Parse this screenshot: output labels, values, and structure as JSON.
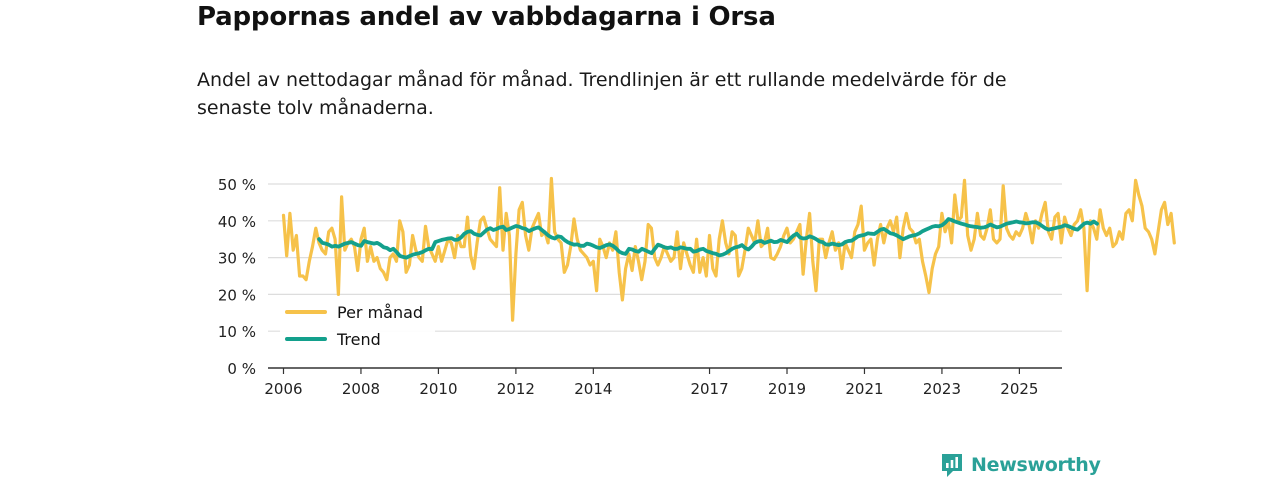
{
  "title": "Pappornas andel av vabbdagarna i Orsa",
  "subtitle": "Andel av nettodagar månad för månad. Trendlinjen är ett rullande medelvärde för de senaste tolv månaderna.",
  "brand": {
    "name": "Newsworthy",
    "icon": "newsworthy-logo-icon"
  },
  "colors": {
    "per_month": "#f6c24a",
    "trend": "#13a08c",
    "grid": "#dddddd",
    "axis": "#333333",
    "text": "#111111",
    "brand": "#2aa198"
  },
  "chart_data": {
    "type": "line",
    "title": "Pappornas andel av vabbdagarna i Orsa",
    "xlabel": "",
    "ylabel": "",
    "xlim": [
      2005.6,
      2026.1
    ],
    "ylim": [
      0,
      50
    ],
    "y_ticks": [
      0,
      10,
      20,
      30,
      40,
      50
    ],
    "y_tick_labels": [
      "0 %",
      "10 %",
      "20 %",
      "30 %",
      "40 %",
      "50 %"
    ],
    "x_ticks": [
      2006,
      2008,
      2010,
      2012,
      2014,
      2017,
      2019,
      2021,
      2023,
      2025
    ],
    "x_tick_labels": [
      "2006",
      "2008",
      "2010",
      "2012",
      "2014",
      "2017",
      "2019",
      "2021",
      "2023",
      "2025"
    ],
    "grid": true,
    "legend": {
      "placement": "bottom-left",
      "entries": [
        "Per månad",
        "Trend"
      ]
    },
    "series": [
      {
        "name": "Per månad",
        "x_start": 2006.0,
        "x_step": 0.08333,
        "values": [
          41.5,
          30.5,
          42,
          32,
          36,
          25,
          25,
          24,
          29,
          33,
          38,
          34,
          32,
          31,
          37,
          38,
          35,
          20,
          46.5,
          32,
          34,
          35,
          33,
          26.5,
          35,
          38,
          29,
          33,
          29,
          30,
          27,
          26,
          24,
          30,
          31,
          29,
          40,
          37,
          26,
          28,
          36,
          32,
          30,
          29,
          38.5,
          33,
          31,
          29,
          33,
          29,
          32,
          35,
          34,
          30,
          36,
          33,
          33,
          41,
          30.5,
          27,
          34,
          40,
          41,
          38,
          35,
          34,
          33,
          49,
          32,
          42,
          36,
          13,
          31,
          43,
          45,
          36,
          32,
          38,
          40,
          42,
          36,
          37,
          34,
          51.5,
          37,
          35,
          34,
          26,
          28,
          33,
          40.5,
          35,
          32,
          31,
          30,
          28,
          29,
          21,
          35,
          33,
          30,
          34,
          32,
          37,
          26,
          18.5,
          27,
          31,
          26.5,
          33,
          29,
          24,
          29,
          39,
          38,
          30,
          28,
          30,
          33,
          31,
          29,
          30,
          37,
          27,
          34,
          31,
          28,
          26,
          35,
          26,
          30,
          25,
          36,
          27,
          25,
          35,
          40,
          34,
          31,
          37,
          36,
          25,
          27,
          32,
          38,
          36,
          34,
          40,
          33,
          34,
          38,
          30,
          29.5,
          31,
          33,
          36,
          38,
          34,
          35,
          37,
          39,
          25.5,
          35,
          42,
          29,
          21,
          35,
          35,
          30,
          34,
          37,
          32,
          34,
          27,
          34,
          32,
          30,
          37,
          39,
          44,
          32,
          34,
          35,
          28,
          35,
          39,
          34,
          38,
          40,
          37,
          41,
          30,
          38,
          42,
          38,
          37,
          34,
          35,
          29,
          25,
          20.5,
          27,
          31,
          33,
          42,
          37,
          40,
          34,
          47,
          40,
          41,
          51,
          36,
          32,
          35,
          42,
          36,
          35,
          38,
          43,
          35,
          34,
          35,
          49.5,
          38,
          36,
          35,
          37,
          36,
          38,
          42,
          39,
          34,
          40,
          38,
          42,
          45,
          37,
          35,
          41,
          42,
          34,
          41,
          38,
          36,
          39,
          40,
          43,
          38,
          21,
          40,
          38,
          35,
          43,
          38,
          36,
          38,
          33,
          34,
          37,
          35,
          42,
          43,
          40,
          51,
          47,
          44,
          38,
          37,
          35,
          31,
          37,
          43,
          45,
          39,
          42,
          34
        ]
      },
      {
        "name": "Trend",
        "x_start": 2006.92,
        "x_step": 0.08333,
        "values": [
          35,
          34,
          33.8,
          33.5,
          33,
          33.2,
          33,
          33.4,
          33.8,
          34,
          34.2,
          33.8,
          33.4,
          33.2,
          34.5,
          34.2,
          34,
          33.8,
          34,
          33.5,
          32.8,
          32.6,
          32,
          32.4,
          31.5,
          30.5,
          30.2,
          30,
          30.4,
          30.8,
          31,
          31.2,
          31.5,
          32,
          32.4,
          32.3,
          34.2,
          34.5,
          34.8,
          35,
          35.2,
          35.3,
          34.8,
          34.9,
          35.5,
          36.5,
          37,
          37.2,
          36.5,
          36.2,
          36,
          36.8,
          37.6,
          38,
          37.5,
          37.8,
          38.2,
          38.4,
          37.5,
          37.8,
          38.2,
          38.6,
          38.4,
          38,
          37.8,
          37.2,
          37.6,
          38,
          38.2,
          37.5,
          36.8,
          36,
          35.5,
          35.2,
          35.8,
          35.6,
          34.8,
          34.2,
          33.8,
          33.5,
          33.6,
          33.2,
          33.2,
          33.8,
          33.6,
          33.2,
          32.8,
          32.6,
          33,
          33.4,
          33.6,
          33.2,
          32.5,
          31.6,
          31.2,
          31,
          32.4,
          32.2,
          31.8,
          31.6,
          32.4,
          32,
          31.6,
          31.2,
          32.4,
          33.5,
          33.2,
          32.8,
          32.6,
          32.8,
          32.4,
          32.4,
          32.8,
          32.6,
          32.4,
          32.4,
          31.6,
          31.8,
          32.2,
          32.4,
          31.8,
          31.5,
          31.2,
          31,
          30.6,
          30.8,
          31.2,
          31.8,
          32.4,
          32.8,
          33,
          33.4,
          32.6,
          32.2,
          33,
          34,
          34.4,
          34.5,
          34,
          34.3,
          34.6,
          34.2,
          34.3,
          34.8,
          34.5,
          34.2,
          35.2,
          36,
          36.5,
          35.5,
          35.2,
          35.3,
          35.8,
          35.5,
          35,
          34.4,
          34.2,
          33.6,
          33.5,
          33.8,
          33.6,
          33.4,
          33.6,
          34.2,
          34.5,
          34.6,
          35.2,
          35.8,
          36,
          36.2,
          36.6,
          36.5,
          36.4,
          37,
          37.6,
          37.8,
          37.2,
          36.6,
          36.4,
          36,
          35.5,
          35,
          35.4,
          35.8,
          36,
          36.2,
          36.6,
          37.2,
          37.6,
          38,
          38.4,
          38.6,
          38.5,
          38.8,
          39.5,
          40.5,
          40.2,
          39.8,
          39.5,
          39.2,
          39,
          38.7,
          38.5,
          38.4,
          38.3,
          38.1,
          38.2,
          38.5,
          39,
          38.6,
          38.2,
          38.4,
          38.8,
          39.2,
          39.4,
          39.6,
          39.8,
          39.6,
          39.5,
          39.3,
          39.4,
          39.6,
          39.6,
          39.2,
          38.6,
          38,
          37.6,
          37.8,
          38,
          38.2,
          38.4,
          38.8,
          38.6,
          38.2,
          37.8,
          37.6,
          38.4,
          39.2,
          39.5,
          39.2,
          39.8,
          39.2
        ]
      }
    ]
  }
}
